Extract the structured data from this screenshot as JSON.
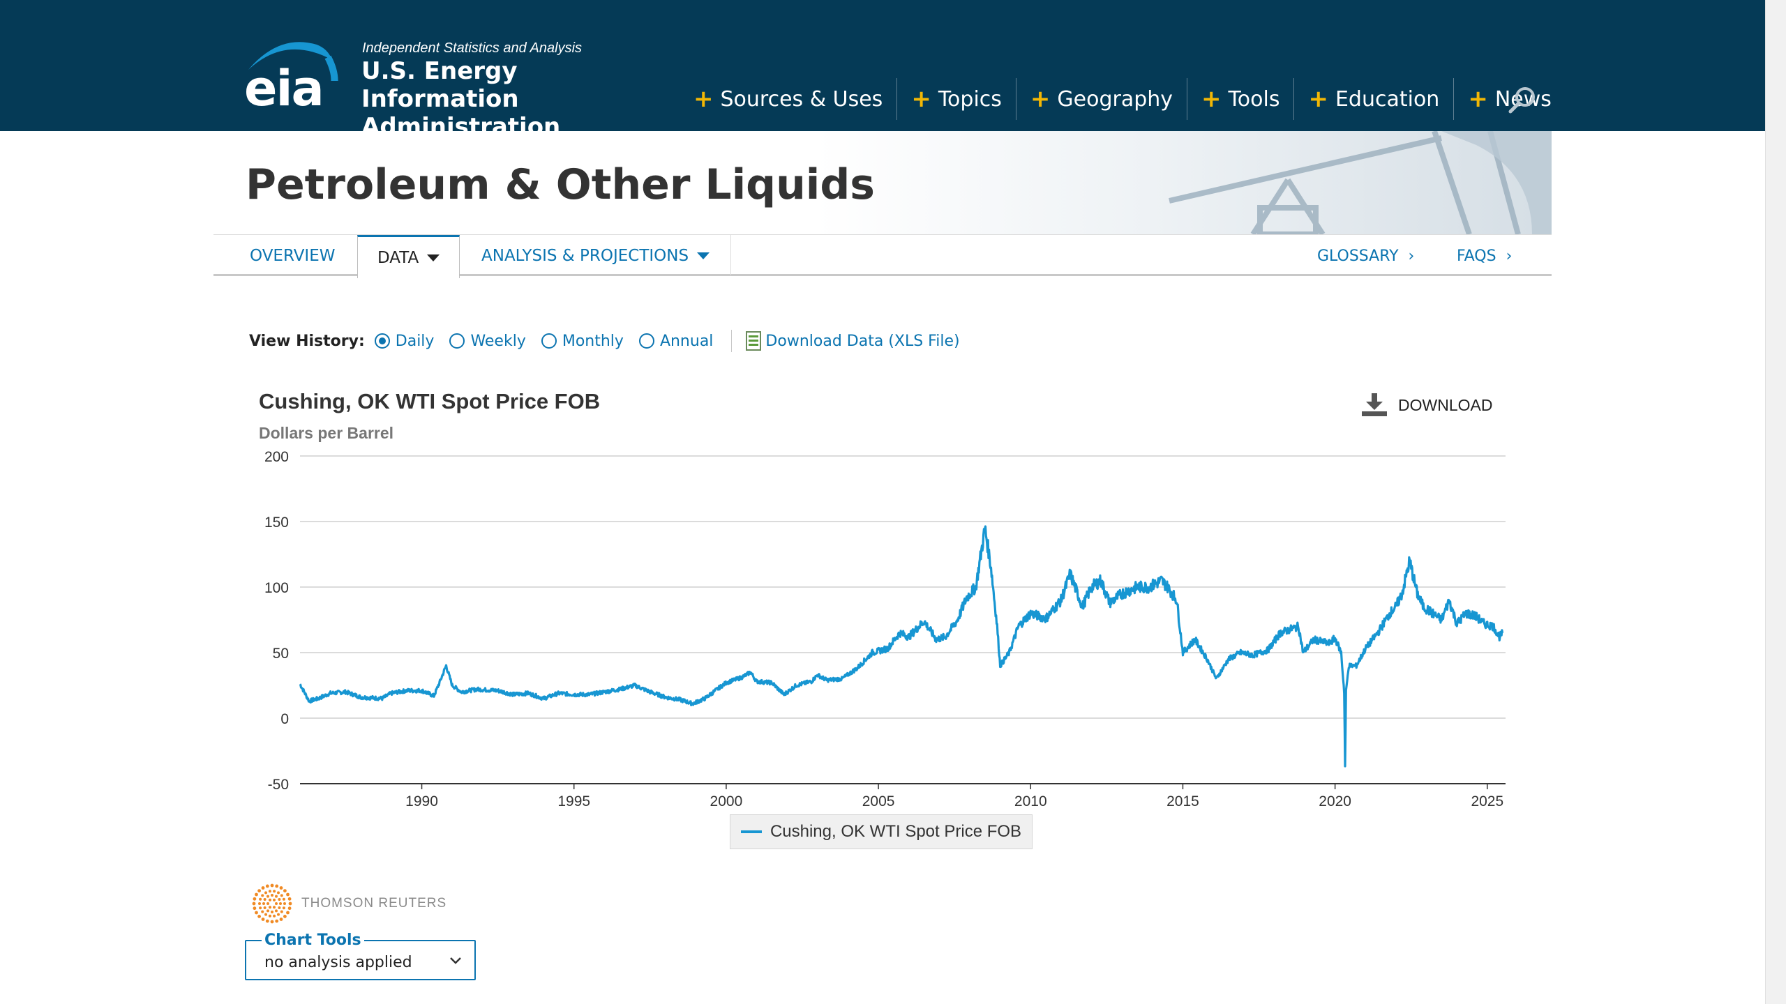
{
  "header": {
    "tagline": "Independent Statistics and Analysis",
    "org_name": "U.S. Energy Information Administration",
    "logo_text": "eia",
    "nav": [
      {
        "label": "Sources & Uses"
      },
      {
        "label": "Topics"
      },
      {
        "label": "Geography"
      },
      {
        "label": "Tools"
      },
      {
        "label": "Education"
      },
      {
        "label": "News"
      }
    ],
    "search_icon": "search-icon"
  },
  "banner": {
    "title": "Petroleum & Other Liquids"
  },
  "subnav": {
    "tabs": [
      {
        "label": "OVERVIEW"
      },
      {
        "label": "DATA"
      },
      {
        "label": "ANALYSIS & PROJECTIONS"
      }
    ],
    "right_links": [
      {
        "label": "GLOSSARY"
      },
      {
        "label": "FAQS"
      }
    ],
    "chevron": "›"
  },
  "view_history": {
    "label": "View History:",
    "options": [
      {
        "label": "Daily",
        "checked": true
      },
      {
        "label": "Weekly",
        "checked": false
      },
      {
        "label": "Monthly",
        "checked": false
      },
      {
        "label": "Annual",
        "checked": false
      }
    ],
    "download_link": "Download Data (XLS File)"
  },
  "chart_header": {
    "download_label": "DOWNLOAD"
  },
  "chart_data": {
    "type": "line",
    "title": "Cushing, OK WTI Spot Price FOB",
    "ylabel": "Dollars per Barrel",
    "xlabel": "",
    "ylim": [
      -50,
      200
    ],
    "xlim": [
      1986,
      2025.6
    ],
    "yticks": [
      "200",
      "150",
      "100",
      "50",
      "0",
      "-50"
    ],
    "xticks": [
      "1990",
      "1995",
      "2000",
      "2005",
      "2010",
      "2015",
      "2020",
      "2025"
    ],
    "grid": true,
    "legend_position": "bottom-center",
    "series": [
      {
        "name": "Cushing, OK WTI Spot Price FOB",
        "color": "#1796d2",
        "x": [
          1986.0,
          1986.3,
          1986.6,
          1987.0,
          1987.5,
          1988.0,
          1988.7,
          1989.0,
          1989.5,
          1990.0,
          1990.4,
          1990.6,
          1990.8,
          1991.0,
          1991.3,
          1991.8,
          1992.5,
          1993.0,
          1993.5,
          1994.0,
          1994.5,
          1995.0,
          1995.5,
          1996.0,
          1996.5,
          1997.0,
          1997.5,
          1998.0,
          1998.5,
          1998.9,
          1999.3,
          1999.7,
          2000.0,
          2000.5,
          2000.8,
          2001.0,
          2001.5,
          2001.9,
          2002.3,
          2002.8,
          2003.0,
          2003.3,
          2003.8,
          2004.3,
          2004.8,
          2005.3,
          2005.7,
          2006.0,
          2006.5,
          2006.9,
          2007.2,
          2007.6,
          2007.9,
          2008.2,
          2008.5,
          2008.7,
          2008.9,
          2009.0,
          2009.3,
          2009.6,
          2010.0,
          2010.5,
          2011.0,
          2011.3,
          2011.7,
          2012.0,
          2012.3,
          2012.6,
          2013.0,
          2013.5,
          2013.9,
          2014.3,
          2014.5,
          2014.8,
          2015.0,
          2015.4,
          2015.8,
          2016.1,
          2016.5,
          2016.9,
          2017.3,
          2017.8,
          2018.2,
          2018.8,
          2018.95,
          2019.3,
          2019.8,
          2020.0,
          2020.2,
          2020.3,
          2020.33,
          2020.36,
          2020.45,
          2020.7,
          2021.0,
          2021.4,
          2021.8,
          2022.0,
          2022.2,
          2022.45,
          2022.7,
          2022.9,
          2023.2,
          2023.5,
          2023.75,
          2024.0,
          2024.3,
          2024.6,
          2024.9,
          2025.2,
          2025.4,
          2025.5
        ],
        "values": [
          26,
          13,
          15,
          19,
          20,
          16,
          15,
          19,
          21,
          21,
          17,
          28,
          40,
          25,
          20,
          22,
          21,
          18,
          19,
          15,
          19,
          18,
          18,
          20,
          22,
          25,
          20,
          16,
          14,
          11,
          15,
          22,
          27,
          31,
          35,
          28,
          27,
          18,
          25,
          28,
          33,
          29,
          30,
          38,
          50,
          53,
          65,
          62,
          74,
          60,
          62,
          75,
          92,
          100,
          145,
          115,
          70,
          40,
          50,
          70,
          80,
          76,
          90,
          110,
          85,
          100,
          105,
          88,
          95,
          100,
          100,
          105,
          100,
          90,
          50,
          60,
          45,
          30,
          45,
          50,
          48,
          52,
          65,
          70,
          50,
          60,
          57,
          61,
          50,
          20,
          -37,
          20,
          40,
          40,
          53,
          65,
          80,
          85,
          95,
          120,
          95,
          85,
          80,
          75,
          90,
          72,
          80,
          78,
          72,
          70,
          62,
          65
        ]
      }
    ]
  },
  "attribution": {
    "label": "THOMSON REUTERS"
  },
  "chart_tools": {
    "label": "Chart Tools",
    "value": "no analysis applied"
  }
}
